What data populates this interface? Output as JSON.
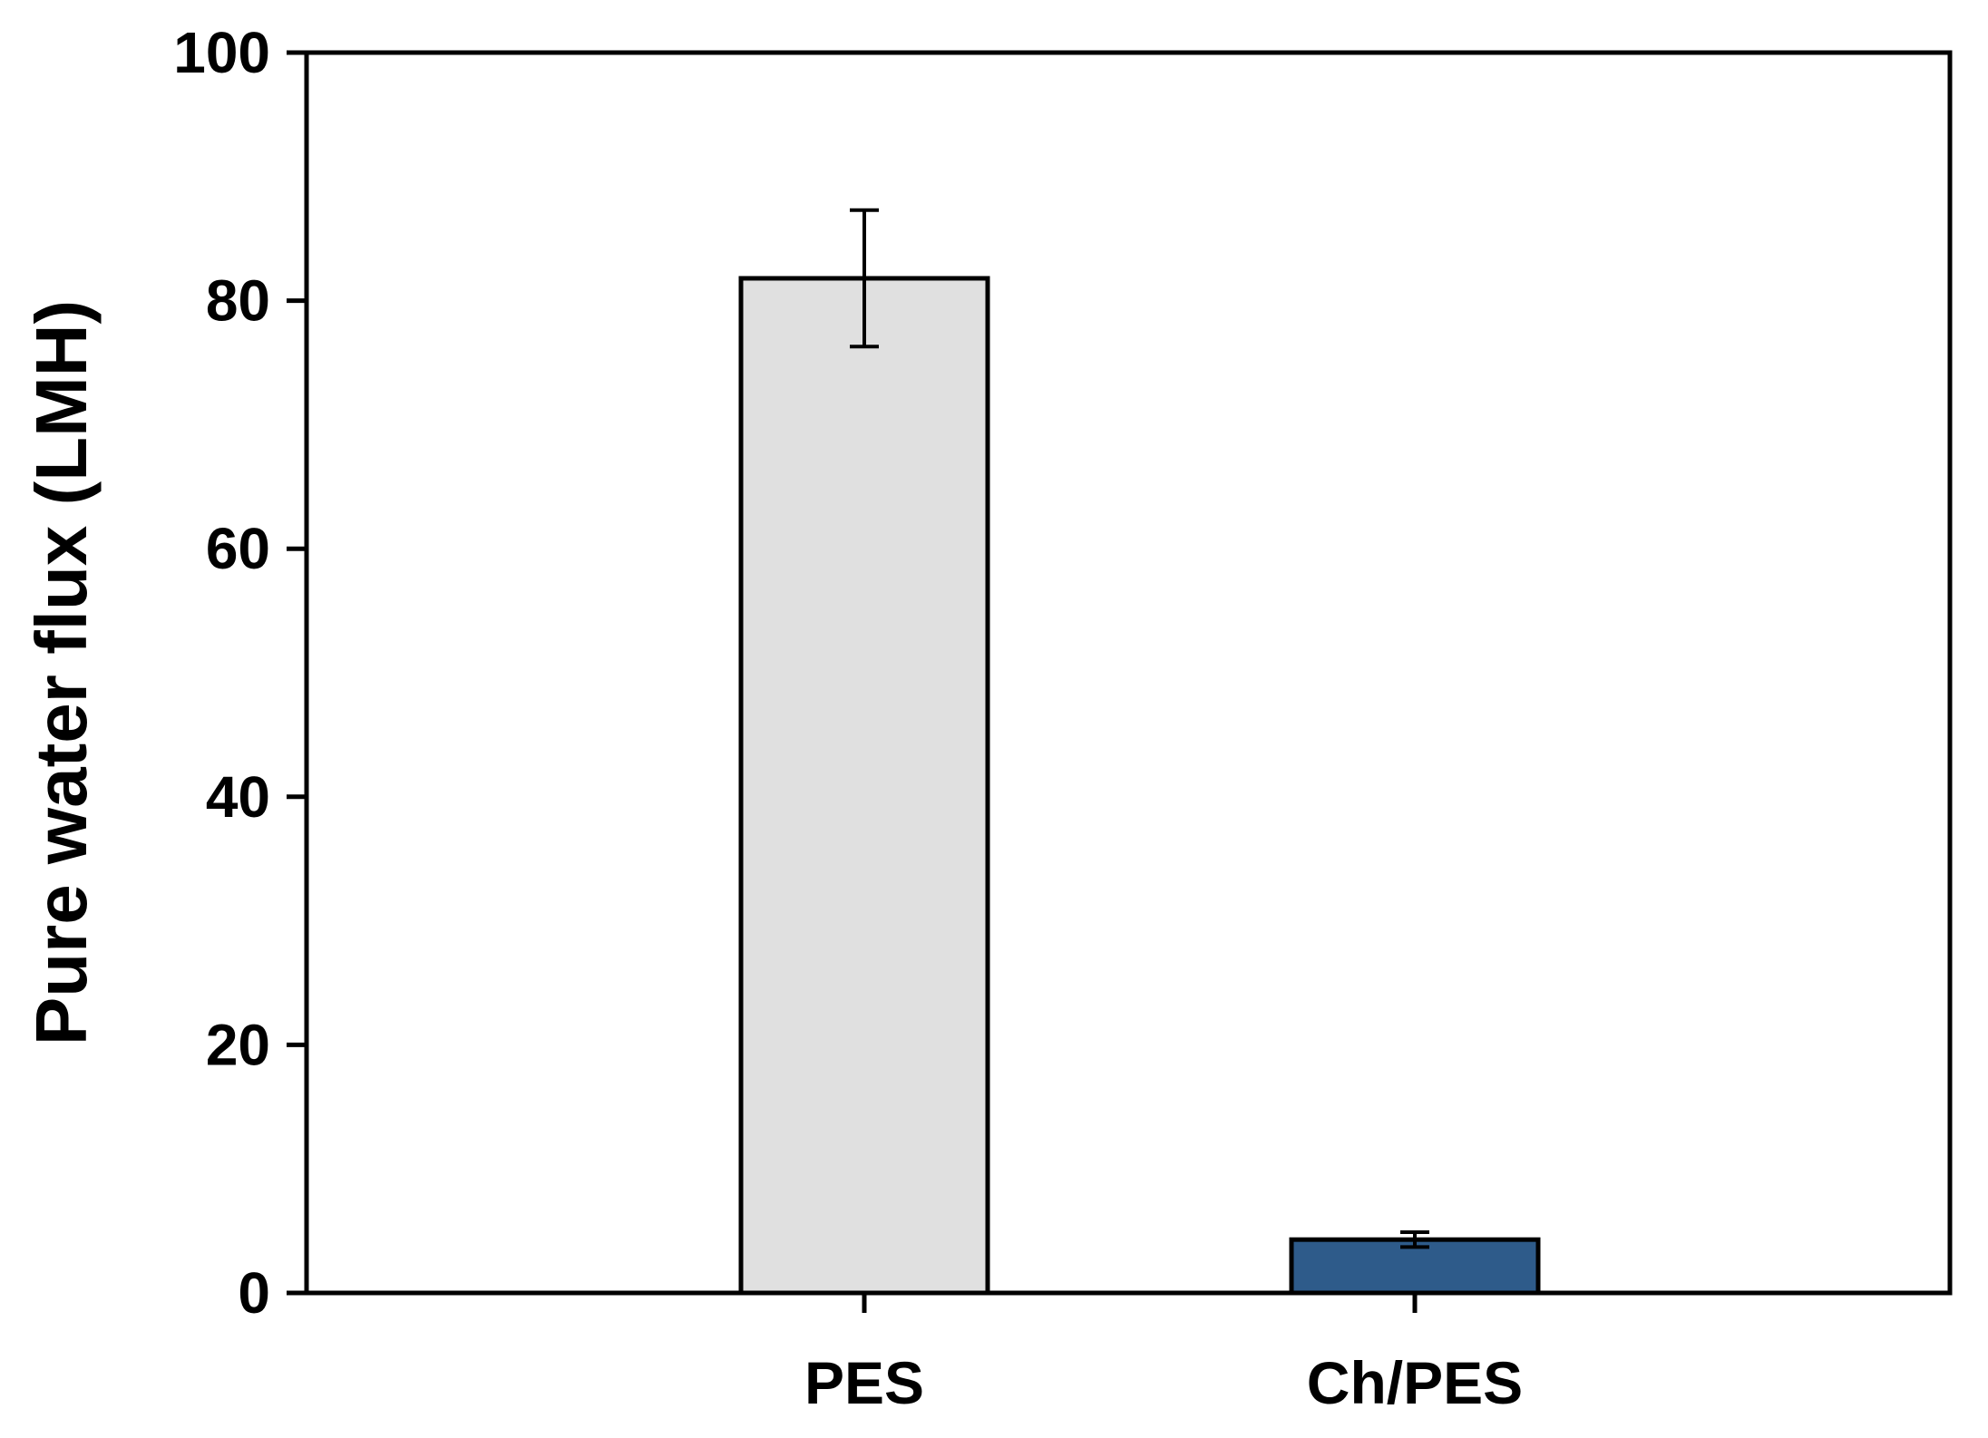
{
  "chart_data": {
    "type": "bar",
    "title": "",
    "xlabel": "",
    "ylabel": "Pure water flux (LMH)",
    "categories": [
      "PES",
      "Ch/PES"
    ],
    "values": [
      81.8,
      4.3
    ],
    "error_bars": [
      5.5,
      0.6
    ],
    "ylim": [
      0,
      100
    ],
    "yticks": [
      0,
      20,
      40,
      60,
      80,
      100
    ],
    "ytick_labels": [
      "0",
      "20",
      "40",
      "60",
      "80",
      "100"
    ],
    "grid": false,
    "legend": "none",
    "colors": {
      "PES": "#e0e0e0",
      "Ch/PES": "#2e5b8a",
      "outline": "#000000",
      "background": "#ffffff"
    }
  }
}
